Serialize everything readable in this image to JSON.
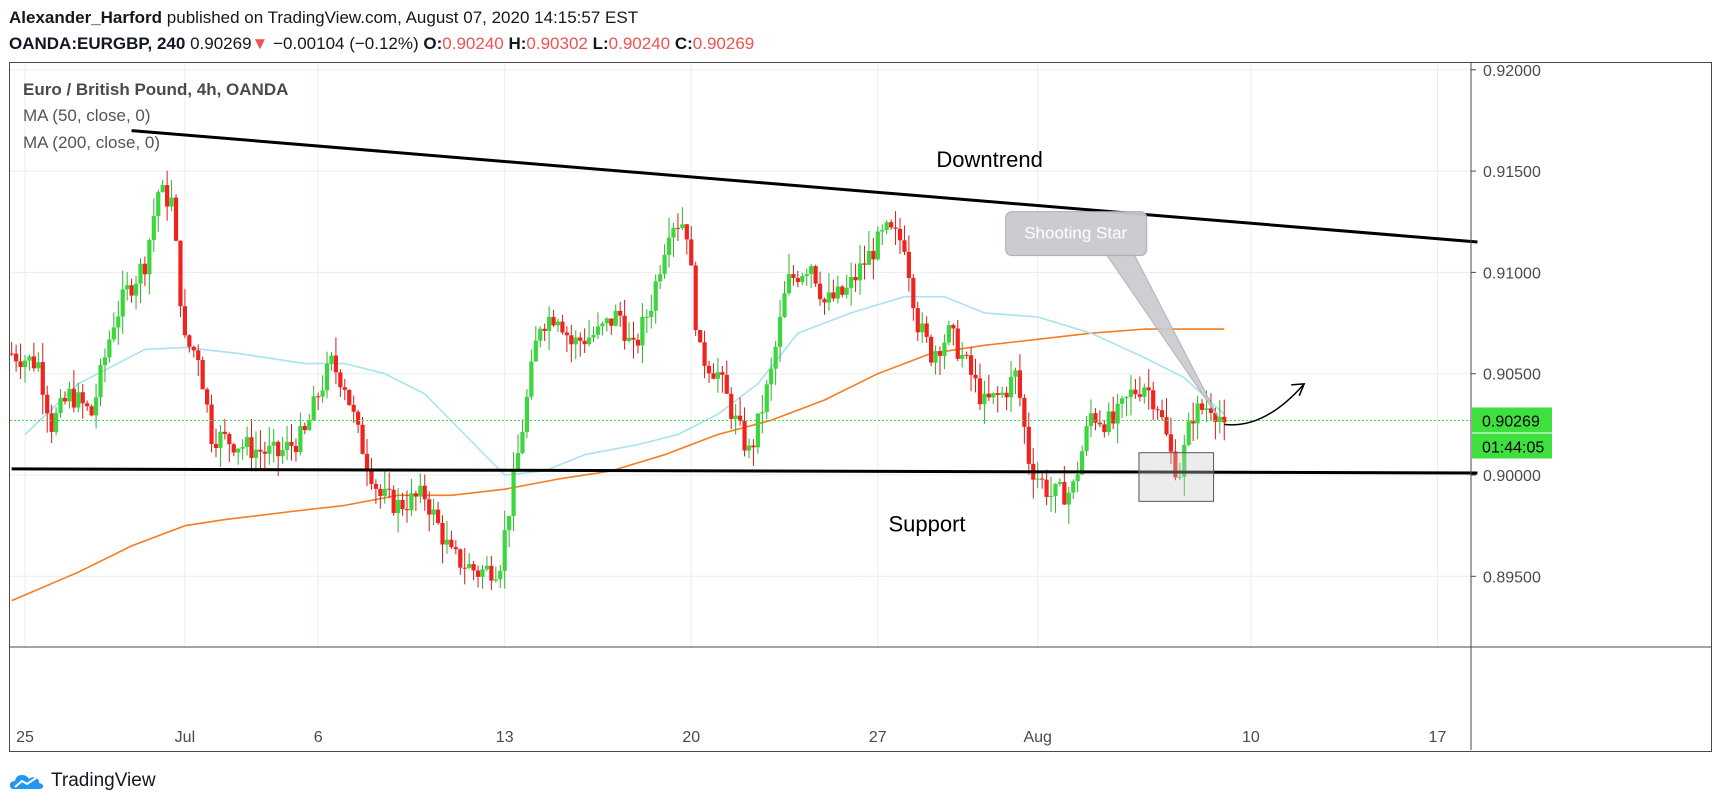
{
  "header": {
    "author": "Alexander_Harford",
    "published_text": "published on TradingView.com, August 07, 2020 14:15:57 EST",
    "symbol": "OANDA:EURGBP, 240",
    "last_price": "0.90269",
    "change_arrow": "▼",
    "change": "−0.00104 (−0.12%)",
    "o_label": "O:",
    "o_value": "0.90240",
    "h_label": "H:",
    "h_value": "0.90302",
    "l_label": "L:",
    "l_value": "0.90240",
    "c_label": "C:",
    "c_value": "0.90269"
  },
  "legend": {
    "title": "Euro / British Pound, 4h, OANDA",
    "ma1": "MA (50, close, 0)",
    "ma2": "MA (200, close, 0)"
  },
  "footer": {
    "brand": "TradingView"
  },
  "colors": {
    "up": "#3ed63e",
    "down": "#f0241f",
    "ma50": "#a8e3ee",
    "ma200": "#f77c1f",
    "price_line": "#3ee03e",
    "price_badge": "#3ee03e",
    "trendline": "#000000",
    "grid": "#e8eef2",
    "callout": "#c8cacf"
  },
  "chart_data": {
    "type": "candlestick",
    "timeframe": "4h",
    "ylim": [
      0.8925,
      0.9205
    ],
    "yticks": [
      "0.89500",
      "0.90000",
      "0.90500",
      "0.91000",
      "0.91500",
      "0.92000"
    ],
    "xticks": [
      {
        "label": "25",
        "day": 0
      },
      {
        "label": "Jul",
        "day": 6
      },
      {
        "label": "6",
        "day": 11
      },
      {
        "label": "13",
        "day": 18
      },
      {
        "label": "20",
        "day": 25
      },
      {
        "label": "27",
        "day": 32
      },
      {
        "label": "Aug",
        "day": 38
      },
      {
        "label": "10",
        "day": 46
      },
      {
        "label": "17",
        "day": 53
      }
    ],
    "current_price": "0.90269",
    "countdown": "01:44:05",
    "keypoints": [
      [
        -0.5,
        0.906
      ],
      [
        0.5,
        0.9055
      ],
      [
        1.0,
        0.9025
      ],
      [
        1.7,
        0.904
      ],
      [
        2.5,
        0.903
      ],
      [
        3.3,
        0.9075
      ],
      [
        3.8,
        0.909
      ],
      [
        4.5,
        0.9105
      ],
      [
        5.0,
        0.914
      ],
      [
        5.5,
        0.9135
      ],
      [
        6.0,
        0.9065
      ],
      [
        6.5,
        0.906
      ],
      [
        7.0,
        0.902
      ],
      [
        8.5,
        0.9013
      ],
      [
        9.5,
        0.901
      ],
      [
        10.5,
        0.902
      ],
      [
        11.0,
        0.904
      ],
      [
        11.5,
        0.9055
      ],
      [
        12.0,
        0.9045
      ],
      [
        12.5,
        0.902
      ],
      [
        13.3,
        0.899
      ],
      [
        14.0,
        0.8985
      ],
      [
        15.0,
        0.899
      ],
      [
        16.0,
        0.896
      ],
      [
        17.0,
        0.8952
      ],
      [
        17.8,
        0.8955
      ],
      [
        18.5,
        0.901
      ],
      [
        19.3,
        0.9075
      ],
      [
        20.0,
        0.908
      ],
      [
        20.5,
        0.9065
      ],
      [
        21.5,
        0.907
      ],
      [
        22.3,
        0.908
      ],
      [
        22.8,
        0.906
      ],
      [
        23.5,
        0.9085
      ],
      [
        24.2,
        0.9125
      ],
      [
        24.8,
        0.9125
      ],
      [
        25.3,
        0.906
      ],
      [
        26.0,
        0.905
      ],
      [
        26.7,
        0.9025
      ],
      [
        27.2,
        0.901
      ],
      [
        28.0,
        0.905
      ],
      [
        28.6,
        0.9095
      ],
      [
        29.5,
        0.9105
      ],
      [
        30.0,
        0.9085
      ],
      [
        30.8,
        0.909
      ],
      [
        31.5,
        0.9105
      ],
      [
        32.3,
        0.912
      ],
      [
        33.0,
        0.9115
      ],
      [
        33.5,
        0.9075
      ],
      [
        34.0,
        0.906
      ],
      [
        34.7,
        0.907
      ],
      [
        35.3,
        0.9055
      ],
      [
        36.0,
        0.9035
      ],
      [
        36.7,
        0.904
      ],
      [
        37.2,
        0.905
      ],
      [
        37.7,
        0.9005
      ],
      [
        38.5,
        0.899
      ],
      [
        39.3,
        0.8992
      ],
      [
        40.0,
        0.903
      ],
      [
        40.8,
        0.9025
      ],
      [
        41.5,
        0.904
      ],
      [
        42.0,
        0.9045
      ],
      [
        42.5,
        0.9035
      ],
      [
        43.0,
        0.901
      ],
      [
        43.3,
        0.9
      ],
      [
        43.8,
        0.903
      ],
      [
        44.5,
        0.9035
      ],
      [
        45.0,
        0.9026
      ]
    ],
    "ma50": [
      [
        0,
        0.902
      ],
      [
        2,
        0.9045
      ],
      [
        4.5,
        0.9062
      ],
      [
        6,
        0.9063
      ],
      [
        8,
        0.906
      ],
      [
        10.5,
        0.9055
      ],
      [
        12,
        0.9055
      ],
      [
        13.5,
        0.905
      ],
      [
        15,
        0.904
      ],
      [
        16.5,
        0.902
      ],
      [
        18,
        0.9
      ],
      [
        19.5,
        0.9002
      ],
      [
        21,
        0.901
      ],
      [
        23,
        0.9015
      ],
      [
        24.5,
        0.902
      ],
      [
        26,
        0.903
      ],
      [
        27.5,
        0.9045
      ],
      [
        29,
        0.907
      ],
      [
        31,
        0.908
      ],
      [
        33,
        0.9088
      ],
      [
        34.5,
        0.9088
      ],
      [
        36,
        0.908
      ],
      [
        38,
        0.9078
      ],
      [
        40,
        0.907
      ],
      [
        42,
        0.9058
      ],
      [
        43.5,
        0.9048
      ],
      [
        45,
        0.903
      ]
    ],
    "ma200": [
      [
        -0.5,
        0.8938
      ],
      [
        2,
        0.8952
      ],
      [
        4,
        0.8965
      ],
      [
        6,
        0.8975
      ],
      [
        7.5,
        0.8978
      ],
      [
        10,
        0.8982
      ],
      [
        12,
        0.8985
      ],
      [
        14,
        0.899
      ],
      [
        16,
        0.899
      ],
      [
        18,
        0.8993
      ],
      [
        20,
        0.8998
      ],
      [
        22,
        0.9002
      ],
      [
        24,
        0.901
      ],
      [
        26,
        0.902
      ],
      [
        28,
        0.9027
      ],
      [
        30,
        0.9037
      ],
      [
        32,
        0.905
      ],
      [
        34,
        0.906
      ],
      [
        36,
        0.9064
      ],
      [
        38,
        0.9067
      ],
      [
        40,
        0.907
      ],
      [
        42,
        0.9072
      ],
      [
        44,
        0.9072
      ],
      [
        45,
        0.9072
      ]
    ],
    "annotations": {
      "downtrend_label": "Downtrend",
      "support_label": "Support",
      "callout_label": "Shooting Star",
      "downtrend_line": [
        [
          4,
          0.917
        ],
        [
          54.5,
          0.9115
        ]
      ],
      "support_line": [
        [
          -0.5,
          0.9003
        ],
        [
          54.5,
          0.9001
        ]
      ],
      "downtrend_text_at": [
        34.2,
        0.9152
      ],
      "support_text_at": [
        32.4,
        0.8972
      ],
      "callout_at": [
        36.8,
        0.913
      ],
      "callout_target": [
        44.8,
        0.9028
      ],
      "highlight_box": [
        [
          41.8,
          0.9011
        ],
        [
          44.6,
          0.8987
        ]
      ],
      "arrow": [
        [
          45.0,
          0.9025
        ],
        [
          48.0,
          0.9045
        ]
      ]
    }
  }
}
